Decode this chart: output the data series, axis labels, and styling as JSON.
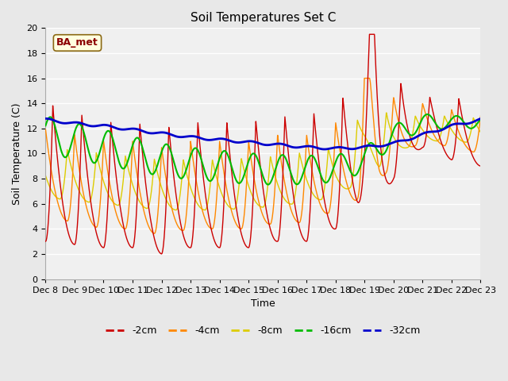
{
  "title": "Soil Temperatures Set C",
  "xlabel": "Time",
  "ylabel": "Soil Temperature (C)",
  "annotation": "BA_met",
  "ylim": [
    0,
    20
  ],
  "xlim": [
    0,
    15
  ],
  "x_tick_labels": [
    "Dec 8",
    "Dec 9",
    "Dec 10",
    "Dec 11",
    "Dec 12",
    "Dec 13",
    "Dec 14",
    "Dec 15",
    "Dec 16",
    "Dec 17",
    "Dec 18",
    "Dec 19",
    "Dec 20",
    "Dec 21",
    "Dec 22",
    "Dec 23"
  ],
  "series_colors": {
    "-2cm": "#cc0000",
    "-4cm": "#ff8800",
    "-8cm": "#ddcc00",
    "-16cm": "#00bb00",
    "-32cm": "#0000cc"
  },
  "series_labels": [
    "-2cm",
    "-4cm",
    "-8cm",
    "-16cm",
    "-32cm"
  ],
  "background_color": "#e8e8e8",
  "plot_bg_color": "#f0f0f0",
  "title_fontsize": 11,
  "label_fontsize": 9,
  "tick_fontsize": 8
}
